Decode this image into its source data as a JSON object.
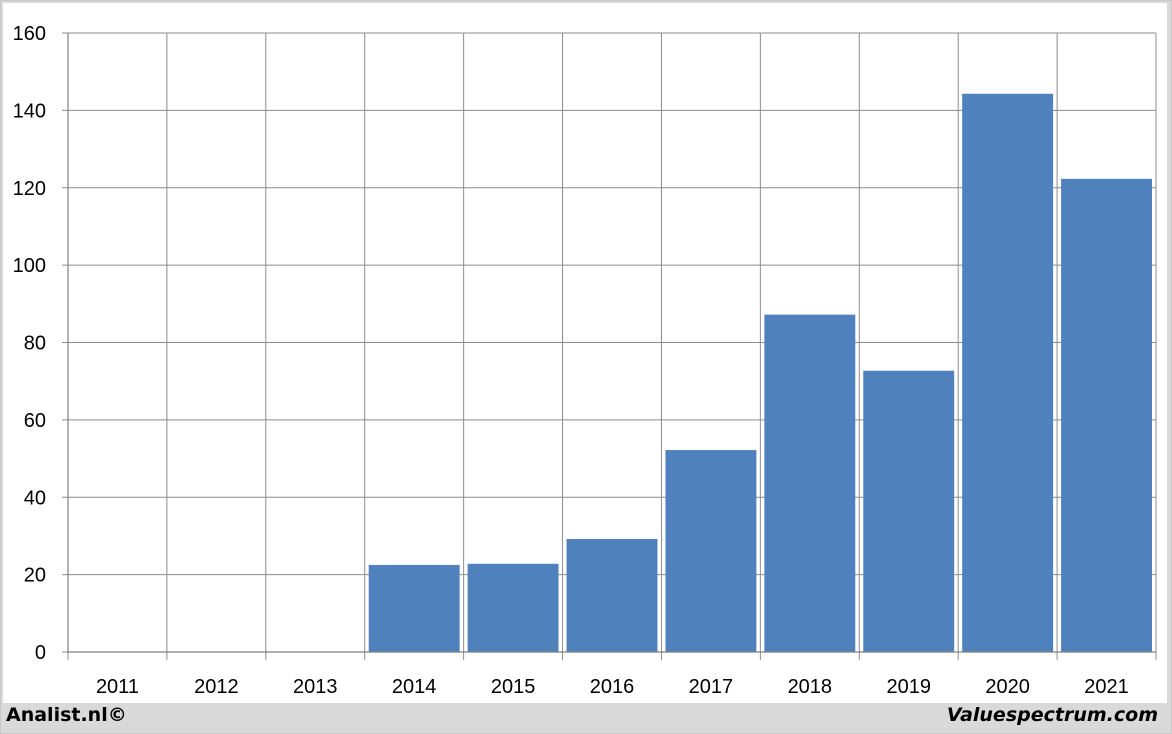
{
  "footer": {
    "left_credit": "Analist.nl©",
    "right_credit": "Valuespectrum.com"
  },
  "colors": {
    "bar": "#4f81bd",
    "grid": "#8c8c8c",
    "background": "#ffffff",
    "frame": "#d9d9d9"
  },
  "chart_data": {
    "type": "bar",
    "categories": [
      "2011",
      "2012",
      "2013",
      "2014",
      "2015",
      "2016",
      "2017",
      "2018",
      "2019",
      "2020",
      "2021"
    ],
    "values": [
      null,
      null,
      null,
      22.5,
      22.8,
      29.2,
      52.2,
      87.2,
      72.7,
      144.3,
      122.3
    ],
    "title": "",
    "xlabel": "",
    "ylabel": "",
    "ylim": [
      0,
      160
    ],
    "yticks": [
      0,
      20,
      40,
      60,
      80,
      100,
      120,
      140,
      160
    ],
    "grid": true,
    "legend": "none"
  }
}
